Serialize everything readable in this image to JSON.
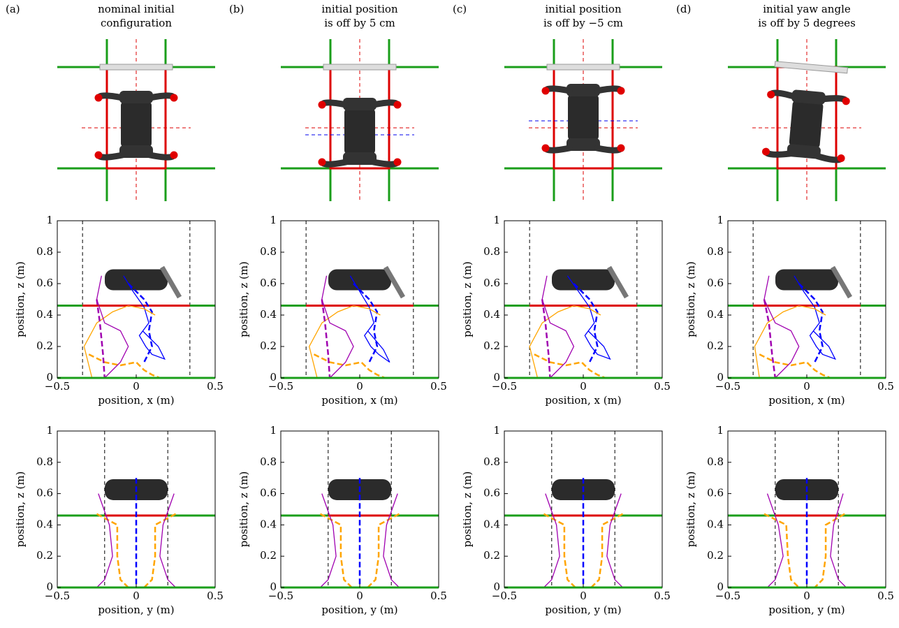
{
  "panels": [
    {
      "label": "(a)",
      "title": [
        "nominal initial",
        "configuration"
      ]
    },
    {
      "label": "(b)",
      "title": [
        "initial position",
        "is off by 5 cm"
      ]
    },
    {
      "label": "(c)",
      "title": [
        "initial position",
        "is off by −5 cm"
      ]
    },
    {
      "label": "(d)",
      "title": [
        "initial yaw angle",
        "is off by 5 degrees"
      ]
    }
  ],
  "chart_data": [
    {
      "type": "line",
      "xlabel": "position, x (m)",
      "ylabel": "position, z (m)",
      "xlim": [
        -0.5,
        0.5
      ],
      "ylim": [
        0,
        1
      ],
      "xticks": [
        {
          "value": -0.5,
          "label": "−0.5"
        },
        0,
        0.5
      ],
      "yticks": [
        0,
        0.2,
        0.4,
        0.6,
        0.8,
        1
      ],
      "vlines": [
        -0.34,
        0.34
      ],
      "platform": 0.46,
      "series": [
        {
          "color": "#0000ff",
          "dash": false,
          "x": [
            -0.08,
            -0.02,
            0.05,
            0.08,
            0.02,
            0.06,
            0.1,
            0.18,
            0.14,
            0.04
          ],
          "values": [
            0.65,
            0.55,
            0.45,
            0.35,
            0.27,
            0.2,
            0.15,
            0.12,
            0.2,
            0.3
          ]
        },
        {
          "color": "#0000ff",
          "dash": true,
          "x": [
            -0.05,
            0.05,
            0.1,
            0.08,
            0.1,
            0.05
          ],
          "values": [
            0.6,
            0.5,
            0.42,
            0.3,
            0.2,
            0.1
          ]
        },
        {
          "color": "#ffa500",
          "dash": false,
          "x": [
            -0.28,
            -0.33,
            -0.25,
            -0.15,
            -0.05,
            0.05,
            0.12
          ],
          "values": [
            0,
            0.2,
            0.35,
            0.42,
            0.46,
            0.44,
            0.4
          ]
        },
        {
          "color": "#ffa500",
          "dash": true,
          "x": [
            -0.3,
            -0.2,
            -0.1,
            0,
            0.05,
            0.1,
            0.15
          ],
          "values": [
            0.15,
            0.1,
            0.08,
            0.1,
            0.05,
            0.02,
            0
          ]
        },
        {
          "color": "#a000b0",
          "dash": false,
          "x": [
            -0.22,
            -0.25,
            -0.2,
            -0.1,
            -0.05,
            -0.1,
            -0.2
          ],
          "values": [
            0.65,
            0.5,
            0.35,
            0.3,
            0.2,
            0.1,
            0
          ]
        },
        {
          "color": "#a000b0",
          "dash": true,
          "x": [
            -0.25,
            -0.23,
            -0.21,
            -0.2
          ],
          "values": [
            0.5,
            0.35,
            0.15,
            0
          ]
        }
      ]
    },
    {
      "type": "line",
      "xlabel": "position, y (m)",
      "ylabel": "position, z (m)",
      "xlim": [
        -0.5,
        0.5
      ],
      "ylim": [
        0,
        1
      ],
      "xticks": [
        {
          "value": -0.5,
          "label": "−0.5"
        },
        0,
        0.5
      ],
      "yticks": [
        0,
        0.2,
        0.4,
        0.6,
        0.8,
        1
      ],
      "vlines": [
        -0.2,
        0.2
      ],
      "platform": 0.46,
      "series": [
        {
          "color": "#0000ff",
          "dash": true,
          "x": [
            0,
            0,
            0
          ],
          "values": [
            0.7,
            0.3,
            0
          ]
        },
        {
          "color": "#ffa500",
          "dash": true,
          "x": [
            -0.25,
            -0.12,
            -0.12,
            -0.1,
            -0.05
          ],
          "values": [
            0.47,
            0.4,
            0.2,
            0.05,
            0
          ]
        },
        {
          "color": "#ffa500",
          "dash": true,
          "x": [
            0.25,
            0.12,
            0.12,
            0.1,
            0.05
          ],
          "values": [
            0.47,
            0.4,
            0.2,
            0.05,
            0
          ]
        },
        {
          "color": "#a000b0",
          "dash": false,
          "x": [
            -0.24,
            -0.17,
            -0.15,
            -0.2,
            -0.25
          ],
          "values": [
            0.6,
            0.4,
            0.2,
            0.05,
            0
          ]
        },
        {
          "color": "#a000b0",
          "dash": false,
          "x": [
            0.24,
            0.17,
            0.15,
            0.2,
            0.25
          ],
          "values": [
            0.6,
            0.4,
            0.2,
            0.05,
            0
          ]
        }
      ]
    },
    {
      "type": "line",
      "xlabel": "position, x (m)",
      "ylabel": "position, z (m)",
      "xlim": [
        -0.5,
        0.5
      ],
      "ylim": [
        0,
        1
      ],
      "xticks": [
        {
          "value": -0.5,
          "label": "−0.5"
        },
        0,
        0.5
      ],
      "yticks": [
        0,
        0.2,
        0.4,
        0.6,
        0.8,
        1
      ],
      "vlines": [
        -0.34,
        0.34
      ],
      "platform": 0.46,
      "series": [
        {
          "color": "#0000ff",
          "dash": false,
          "x": [
            -0.06,
            0,
            0.06,
            0.09,
            0.03,
            0.07,
            0.12,
            0.19,
            0.15,
            0.05
          ],
          "values": [
            0.65,
            0.55,
            0.45,
            0.35,
            0.27,
            0.2,
            0.15,
            0.1,
            0.18,
            0.3
          ]
        },
        {
          "color": "#0000ff",
          "dash": true,
          "x": [
            -0.04,
            0.06,
            0.11,
            0.09,
            0.11,
            0.06
          ],
          "values": [
            0.6,
            0.5,
            0.42,
            0.3,
            0.2,
            0.1
          ]
        },
        {
          "color": "#ffa500",
          "dash": false,
          "x": [
            -0.27,
            -0.32,
            -0.24,
            -0.14,
            -0.04,
            0.06,
            0.13
          ],
          "values": [
            0,
            0.2,
            0.35,
            0.42,
            0.46,
            0.44,
            0.4
          ]
        },
        {
          "color": "#ffa500",
          "dash": true,
          "x": [
            -0.29,
            -0.19,
            -0.09,
            0.01,
            0.06,
            0.11,
            0.16
          ],
          "values": [
            0.15,
            0.1,
            0.08,
            0.1,
            0.05,
            0.02,
            0
          ]
        },
        {
          "color": "#a000b0",
          "dash": false,
          "x": [
            -0.21,
            -0.24,
            -0.19,
            -0.09,
            -0.04,
            -0.09,
            -0.19
          ],
          "values": [
            0.65,
            0.5,
            0.35,
            0.3,
            0.2,
            0.1,
            0
          ]
        },
        {
          "color": "#a000b0",
          "dash": true,
          "x": [
            -0.24,
            -0.22,
            -0.2,
            -0.19
          ],
          "values": [
            0.5,
            0.35,
            0.15,
            0
          ]
        }
      ]
    },
    {
      "type": "line",
      "xlabel": "position, y (m)",
      "ylabel": "position, z (m)",
      "xlim": [
        -0.5,
        0.5
      ],
      "ylim": [
        0,
        1
      ],
      "xticks": [
        {
          "value": -0.5,
          "label": "−0.5"
        },
        0,
        0.5
      ],
      "yticks": [
        0,
        0.2,
        0.4,
        0.6,
        0.8,
        1
      ],
      "vlines": [
        -0.2,
        0.2
      ],
      "platform": 0.46,
      "series": [
        {
          "color": "#0000ff",
          "dash": true,
          "x": [
            0,
            0,
            0
          ],
          "values": [
            0.7,
            0.3,
            0
          ]
        },
        {
          "color": "#ffa500",
          "dash": true,
          "x": [
            -0.25,
            -0.12,
            -0.12,
            -0.1,
            -0.05
          ],
          "values": [
            0.47,
            0.4,
            0.2,
            0.05,
            0
          ]
        },
        {
          "color": "#ffa500",
          "dash": true,
          "x": [
            0.25,
            0.12,
            0.12,
            0.1,
            0.05
          ],
          "values": [
            0.47,
            0.4,
            0.2,
            0.05,
            0
          ]
        },
        {
          "color": "#a000b0",
          "dash": false,
          "x": [
            -0.24,
            -0.17,
            -0.15,
            -0.2,
            -0.25
          ],
          "values": [
            0.6,
            0.4,
            0.2,
            0.05,
            0
          ]
        },
        {
          "color": "#a000b0",
          "dash": false,
          "x": [
            0.24,
            0.17,
            0.15,
            0.2,
            0.25
          ],
          "values": [
            0.6,
            0.4,
            0.2,
            0.05,
            0
          ]
        }
      ]
    },
    {
      "type": "line",
      "xlabel": "position, x (m)",
      "ylabel": "position, z (m)",
      "xlim": [
        -0.5,
        0.5
      ],
      "ylim": [
        0,
        1
      ],
      "xticks": [
        {
          "value": -0.5,
          "label": "−0.5"
        },
        0,
        0.5
      ],
      "yticks": [
        0,
        0.2,
        0.4,
        0.6,
        0.8,
        1
      ],
      "vlines": [
        -0.34,
        0.34
      ],
      "platform": 0.46,
      "series": [
        {
          "color": "#0000ff",
          "dash": false,
          "x": [
            -0.1,
            -0.03,
            0.04,
            0.07,
            0.01,
            0.05,
            0.09,
            0.17,
            0.13,
            0.03
          ],
          "values": [
            0.65,
            0.55,
            0.45,
            0.35,
            0.27,
            0.2,
            0.15,
            0.12,
            0.2,
            0.3
          ]
        },
        {
          "color": "#0000ff",
          "dash": true,
          "x": [
            -0.06,
            0.04,
            0.09,
            0.07,
            0.09,
            0.04
          ],
          "values": [
            0.6,
            0.5,
            0.42,
            0.3,
            0.2,
            0.1
          ]
        },
        {
          "color": "#ffa500",
          "dash": false,
          "x": [
            -0.29,
            -0.34,
            -0.26,
            -0.16,
            -0.06,
            0.04,
            0.11
          ],
          "values": [
            0,
            0.2,
            0.35,
            0.42,
            0.46,
            0.44,
            0.4
          ]
        },
        {
          "color": "#ffa500",
          "dash": true,
          "x": [
            -0.31,
            -0.21,
            -0.11,
            -0.01,
            0.04,
            0.09,
            0.14
          ],
          "values": [
            0.15,
            0.1,
            0.08,
            0.1,
            0.05,
            0.02,
            0
          ]
        },
        {
          "color": "#a000b0",
          "dash": false,
          "x": [
            -0.23,
            -0.26,
            -0.21,
            -0.11,
            -0.06,
            -0.11,
            -0.21
          ],
          "values": [
            0.65,
            0.5,
            0.35,
            0.3,
            0.2,
            0.1,
            0
          ]
        },
        {
          "color": "#a000b0",
          "dash": true,
          "x": [
            -0.26,
            -0.24,
            -0.22,
            -0.21
          ],
          "values": [
            0.5,
            0.35,
            0.15,
            0
          ]
        }
      ]
    },
    {
      "type": "line",
      "xlabel": "position, y (m)",
      "ylabel": "position, z (m)",
      "xlim": [
        -0.5,
        0.5
      ],
      "ylim": [
        0,
        1
      ],
      "xticks": [
        {
          "value": -0.5,
          "label": "−0.5"
        },
        0,
        0.5
      ],
      "yticks": [
        0,
        0.2,
        0.4,
        0.6,
        0.8,
        1
      ],
      "vlines": [
        -0.2,
        0.2
      ],
      "platform": 0.46,
      "series": [
        {
          "color": "#0000ff",
          "dash": true,
          "x": [
            0,
            0,
            0
          ],
          "values": [
            0.7,
            0.3,
            0
          ]
        },
        {
          "color": "#ffa500",
          "dash": true,
          "x": [
            -0.25,
            -0.12,
            -0.12,
            -0.1,
            -0.05
          ],
          "values": [
            0.47,
            0.4,
            0.2,
            0.05,
            0
          ]
        },
        {
          "color": "#ffa500",
          "dash": true,
          "x": [
            0.25,
            0.12,
            0.12,
            0.1,
            0.05
          ],
          "values": [
            0.47,
            0.4,
            0.2,
            0.05,
            0
          ]
        },
        {
          "color": "#a000b0",
          "dash": false,
          "x": [
            -0.24,
            -0.17,
            -0.15,
            -0.2,
            -0.25
          ],
          "values": [
            0.6,
            0.4,
            0.2,
            0.05,
            0
          ]
        },
        {
          "color": "#a000b0",
          "dash": false,
          "x": [
            0.24,
            0.17,
            0.15,
            0.2,
            0.25
          ],
          "values": [
            0.6,
            0.4,
            0.2,
            0.05,
            0
          ]
        }
      ]
    },
    {
      "type": "line",
      "xlabel": "position, x (m)",
      "ylabel": "position, z (m)",
      "xlim": [
        -0.5,
        0.5
      ],
      "ylim": [
        0,
        1
      ],
      "xticks": [
        {
          "value": -0.5,
          "label": "−0.5"
        },
        0,
        0.5
      ],
      "yticks": [
        0,
        0.2,
        0.4,
        0.6,
        0.8,
        1
      ],
      "vlines": [
        -0.34,
        0.34
      ],
      "platform": 0.46,
      "series": [
        {
          "color": "#0000ff",
          "dash": false,
          "x": [
            -0.08,
            -0.02,
            0.05,
            0.08,
            0.02,
            0.06,
            0.1,
            0.18,
            0.14,
            0.04
          ],
          "values": [
            0.65,
            0.55,
            0.45,
            0.35,
            0.27,
            0.2,
            0.15,
            0.12,
            0.2,
            0.3
          ]
        },
        {
          "color": "#0000ff",
          "dash": true,
          "x": [
            -0.05,
            0.05,
            0.1,
            0.08,
            0.1,
            0.05
          ],
          "values": [
            0.6,
            0.5,
            0.42,
            0.3,
            0.2,
            0.1
          ]
        },
        {
          "color": "#ffa500",
          "dash": false,
          "x": [
            -0.3,
            -0.33,
            -0.25,
            -0.15,
            -0.05,
            0.05,
            0.12
          ],
          "values": [
            0,
            0.2,
            0.35,
            0.42,
            0.46,
            0.44,
            0.4
          ]
        },
        {
          "color": "#ffa500",
          "dash": true,
          "x": [
            -0.3,
            -0.2,
            -0.1,
            0,
            0.05,
            0.1,
            0.15
          ],
          "values": [
            0.15,
            0.1,
            0.08,
            0.1,
            0.05,
            0.02,
            0
          ]
        },
        {
          "color": "#a000b0",
          "dash": false,
          "x": [
            -0.24,
            -0.27,
            -0.2,
            -0.1,
            -0.05,
            -0.1,
            -0.2
          ],
          "values": [
            0.65,
            0.5,
            0.35,
            0.3,
            0.2,
            0.1,
            0
          ]
        },
        {
          "color": "#a000b0",
          "dash": true,
          "x": [
            -0.27,
            -0.24,
            -0.22,
            -0.2
          ],
          "values": [
            0.5,
            0.35,
            0.15,
            0
          ]
        }
      ]
    },
    {
      "type": "line",
      "xlabel": "position, y (m)",
      "ylabel": "position, z (m)",
      "xlim": [
        -0.5,
        0.5
      ],
      "ylim": [
        0,
        1
      ],
      "xticks": [
        {
          "value": -0.5,
          "label": "−0.5"
        },
        0,
        0.5
      ],
      "yticks": [
        0,
        0.2,
        0.4,
        0.6,
        0.8,
        1
      ],
      "vlines": [
        -0.2,
        0.2
      ],
      "platform": 0.46,
      "series": [
        {
          "color": "#0000ff",
          "dash": true,
          "x": [
            0,
            0,
            0
          ],
          "values": [
            0.7,
            0.3,
            0
          ]
        },
        {
          "color": "#ffa500",
          "dash": true,
          "x": [
            -0.27,
            -0.13,
            -0.12,
            -0.1,
            -0.05
          ],
          "values": [
            0.47,
            0.4,
            0.2,
            0.05,
            0
          ]
        },
        {
          "color": "#ffa500",
          "dash": true,
          "x": [
            0.24,
            0.12,
            0.12,
            0.1,
            0.05
          ],
          "values": [
            0.47,
            0.4,
            0.2,
            0.05,
            0
          ]
        },
        {
          "color": "#a000b0",
          "dash": false,
          "x": [
            -0.25,
            -0.18,
            -0.15,
            -0.2,
            -0.25
          ],
          "values": [
            0.6,
            0.4,
            0.2,
            0.05,
            0
          ]
        },
        {
          "color": "#a000b0",
          "dash": false,
          "x": [
            0.23,
            0.17,
            0.15,
            0.2,
            0.25
          ],
          "values": [
            0.6,
            0.4,
            0.2,
            0.05,
            0
          ]
        }
      ]
    }
  ]
}
